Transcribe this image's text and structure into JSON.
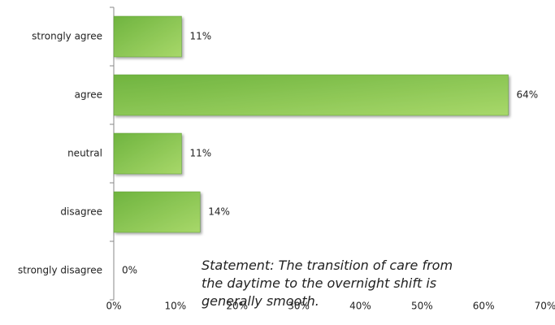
{
  "chart_data": {
    "type": "bar",
    "orientation": "horizontal",
    "categories": [
      "strongly agree",
      "agree",
      "neutral",
      "disagree",
      "strongly disagree"
    ],
    "values": [
      11,
      64,
      11,
      14,
      0
    ],
    "value_labels": [
      "11%",
      "64%",
      "11%",
      "14%",
      "0%"
    ],
    "color": "#8cc751",
    "xlim": [
      0,
      70
    ],
    "xticks": [
      {
        "value": 0,
        "label": "0%"
      },
      {
        "value": 10,
        "label": "10%"
      },
      {
        "value": 20,
        "label": "20%"
      },
      {
        "value": 30,
        "label": "30%"
      },
      {
        "value": 40,
        "label": "40%"
      },
      {
        "value": 50,
        "label": "50%"
      },
      {
        "value": 60,
        "label": "60%"
      },
      {
        "value": 70,
        "label": "70%"
      }
    ],
    "grid": false,
    "annotation": "Statement: The transition of care from the daytime to the overnight shift is generally smooth."
  }
}
